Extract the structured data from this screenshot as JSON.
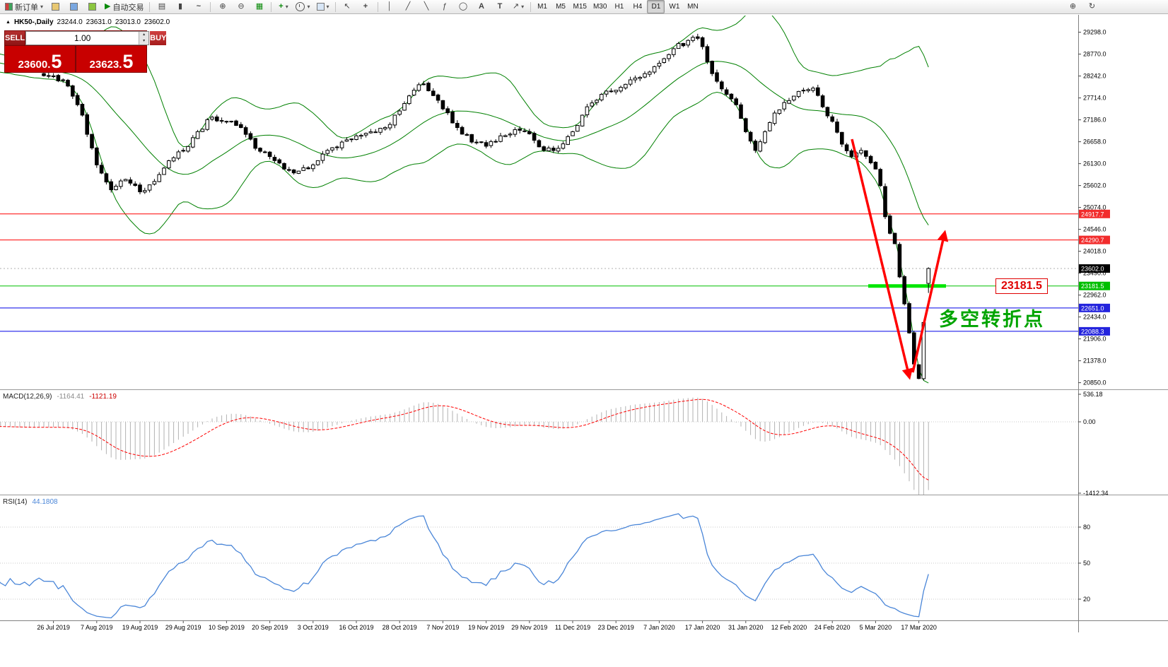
{
  "toolbar": {
    "new_order_label": "新订单",
    "autotrading_label": "自动交易",
    "timeframes": [
      "M1",
      "M5",
      "M15",
      "M30",
      "H1",
      "H4",
      "D1",
      "W1",
      "MN"
    ],
    "active_timeframe": "D1"
  },
  "icons": {
    "dropdown": "▾",
    "collapse": "▲",
    "autoplay": "▶",
    "bars_chart": "▤",
    "candle_chart": "▮",
    "line_chart": "~",
    "zoom_in": "⊕",
    "zoom_out": "⊖",
    "tile_windows": "▦",
    "indicators": "+",
    "cursor": "↖",
    "crosshair": "+",
    "vertical_line": "│",
    "trendline": "╱",
    "channel": "╲",
    "fibonacci": "ƒ",
    "ellipse": "◯",
    "text_tool": "A",
    "label_tool": "T",
    "arrow_tool": "↗",
    "refresh": "↻",
    "spin_up": "▴",
    "spin_down": "▾"
  },
  "symbol_line": {
    "symbol": "HK50-,Daily",
    "open": "23244.0",
    "high": "23631.0",
    "low": "23013.0",
    "close": "23602.0"
  },
  "trade_panel": {
    "sell_label": "SELL",
    "buy_label": "BUY",
    "volume": "1.00",
    "sell_price": "23600.",
    "sell_pips": "5",
    "buy_price": "23623.",
    "buy_pips": "5"
  },
  "price_axis": {
    "ticks": [
      "29298.0",
      "28770.0",
      "28242.0",
      "27714.0",
      "27186.0",
      "26658.0",
      "26130.0",
      "25602.0",
      "25074.0",
      "24546.0",
      "24018.0",
      "23490.0",
      "22962.0",
      "22434.0",
      "21906.0",
      "21378.0",
      "20850.0"
    ]
  },
  "levels": [
    {
      "price": 24917.7,
      "label": "24917.7",
      "line_color": "#ff0000",
      "axis_bg": "#f22c2c"
    },
    {
      "price": 24290.7,
      "label": "24290.7",
      "line_color": "#ff0000",
      "axis_bg": "#f22c2c"
    },
    {
      "price": 23181.5,
      "label": "23181.5",
      "line_color": "#00c000",
      "axis_bg": "#00bf00"
    },
    {
      "price": 22651.0,
      "label": "22651.0",
      "line_color": "#0000e6",
      "axis_bg": "#2424dd"
    },
    {
      "price": 22088.3,
      "label": "22088.3",
      "line_color": "#0000e6",
      "axis_bg": "#2424dd"
    }
  ],
  "current_price": {
    "label": "23602.0",
    "value": 23602.0,
    "axis_bg": "#000000"
  },
  "annotations": {
    "level_tag": "23181.5",
    "turning_point_text": "多空转折点",
    "highlight_price": 23181.5
  },
  "macd_panel": {
    "name": "MACD(12,26,9)",
    "main_value": "-1164.41",
    "signal_value": "-1121.19",
    "ticks": [
      "536.18",
      "0.00",
      "-1412.34"
    ],
    "tick_values": [
      536.18,
      0,
      -1412.34
    ]
  },
  "rsi_panel": {
    "name": "RSI(14)",
    "value": "44.1808",
    "ticks": [
      "80",
      "50",
      "20"
    ],
    "tick_values": [
      80,
      50,
      20
    ]
  },
  "date_axis": {
    "labels": [
      "26 Jul 2019",
      "7 Aug 2019",
      "19 Aug 2019",
      "29 Aug 2019",
      "10 Sep 2019",
      "20 Sep 2019",
      "3 Oct 2019",
      "16 Oct 2019",
      "28 Oct 2019",
      "7 Nov 2019",
      "19 Nov 2019",
      "29 Nov 2019",
      "11 Dec 2019",
      "23 Dec 2019",
      "7 Jan 2020",
      "17 Jan 2020",
      "31 Jan 2020",
      "12 Feb 2020",
      "24 Feb 2020",
      "5 Mar 2020",
      "17 Mar 2020"
    ]
  },
  "colors": {
    "bull": "#ffffff",
    "bear": "#000000",
    "candle_outline": "#000000",
    "bollinger": "#008000",
    "macd_histogram": "#b2b2b2",
    "macd_signal": "#ff0000",
    "rsi_line": "#4a86d8",
    "arrow": "#ff0000",
    "highlight": "#00e600"
  },
  "chart_data": {
    "type": "candlestick",
    "symbol": "HK50",
    "timeframe": "Daily",
    "last_bar": {
      "open": 23244.0,
      "high": 23631.0,
      "low": 23013.0,
      "close": 23602.0
    },
    "visible_price_range": [
      20690,
      29700
    ],
    "close_anchors": [
      [
        0,
        28250
      ],
      [
        4,
        28150
      ],
      [
        8,
        27300
      ],
      [
        11,
        26100
      ],
      [
        14,
        25500
      ],
      [
        17,
        25750
      ],
      [
        20,
        25450
      ],
      [
        23,
        25700
      ],
      [
        26,
        26200
      ],
      [
        29,
        26450
      ],
      [
        32,
        26900
      ],
      [
        35,
        27250
      ],
      [
        38,
        27150
      ],
      [
        41,
        27000
      ],
      [
        44,
        26500
      ],
      [
        47,
        26300
      ],
      [
        50,
        26000
      ],
      [
        53,
        25950
      ],
      [
        56,
        26100
      ],
      [
        59,
        26450
      ],
      [
        62,
        26650
      ],
      [
        65,
        26800
      ],
      [
        68,
        26900
      ],
      [
        71,
        27000
      ],
      [
        74,
        27400
      ],
      [
        77,
        27900
      ],
      [
        79,
        28050
      ],
      [
        83,
        27450
      ],
      [
        86,
        27000
      ],
      [
        89,
        26650
      ],
      [
        92,
        26550
      ],
      [
        95,
        26800
      ],
      [
        98,
        26950
      ],
      [
        101,
        26850
      ],
      [
        104,
        26450
      ],
      [
        107,
        26500
      ],
      [
        110,
        26900
      ],
      [
        113,
        27500
      ],
      [
        116,
        27800
      ],
      [
        119,
        27900
      ],
      [
        122,
        28150
      ],
      [
        125,
        28300
      ],
      [
        128,
        28550
      ],
      [
        131,
        28900
      ],
      [
        134,
        29100
      ],
      [
        136,
        29150
      ],
      [
        137,
        28950
      ],
      [
        139,
        28300
      ],
      [
        142,
        27800
      ],
      [
        144,
        27550
      ],
      [
        146,
        26900
      ],
      [
        148,
        26450
      ],
      [
        150,
        26900
      ],
      [
        152,
        27350
      ],
      [
        155,
        27650
      ],
      [
        158,
        27900
      ],
      [
        160,
        27950
      ],
      [
        162,
        27500
      ],
      [
        164,
        27150
      ],
      [
        166,
        26600
      ],
      [
        168,
        26300
      ],
      [
        170,
        26450
      ],
      [
        172,
        26150
      ],
      [
        173,
        26000
      ],
      [
        174,
        25600
      ],
      [
        175,
        24850
      ],
      [
        176,
        24450
      ],
      [
        177,
        24200
      ],
      [
        178,
        23400
      ],
      [
        179,
        22750
      ],
      [
        180,
        22050
      ],
      [
        181,
        21300
      ],
      [
        182,
        20950
      ],
      [
        183,
        22300
      ],
      [
        184,
        23602
      ]
    ],
    "indicators": [
      {
        "type": "bollinger_bands",
        "period": 20,
        "deviation": 2
      },
      {
        "type": "macd",
        "fast": 12,
        "slow": 26,
        "signal": 9,
        "last_main": -1164.41,
        "last_signal": -1121.19
      },
      {
        "type": "rsi",
        "period": 14,
        "last": 44.1808
      }
    ],
    "horizontal_levels": [
      24917.7,
      24290.7,
      23181.5,
      22651.0,
      22088.3
    ]
  }
}
